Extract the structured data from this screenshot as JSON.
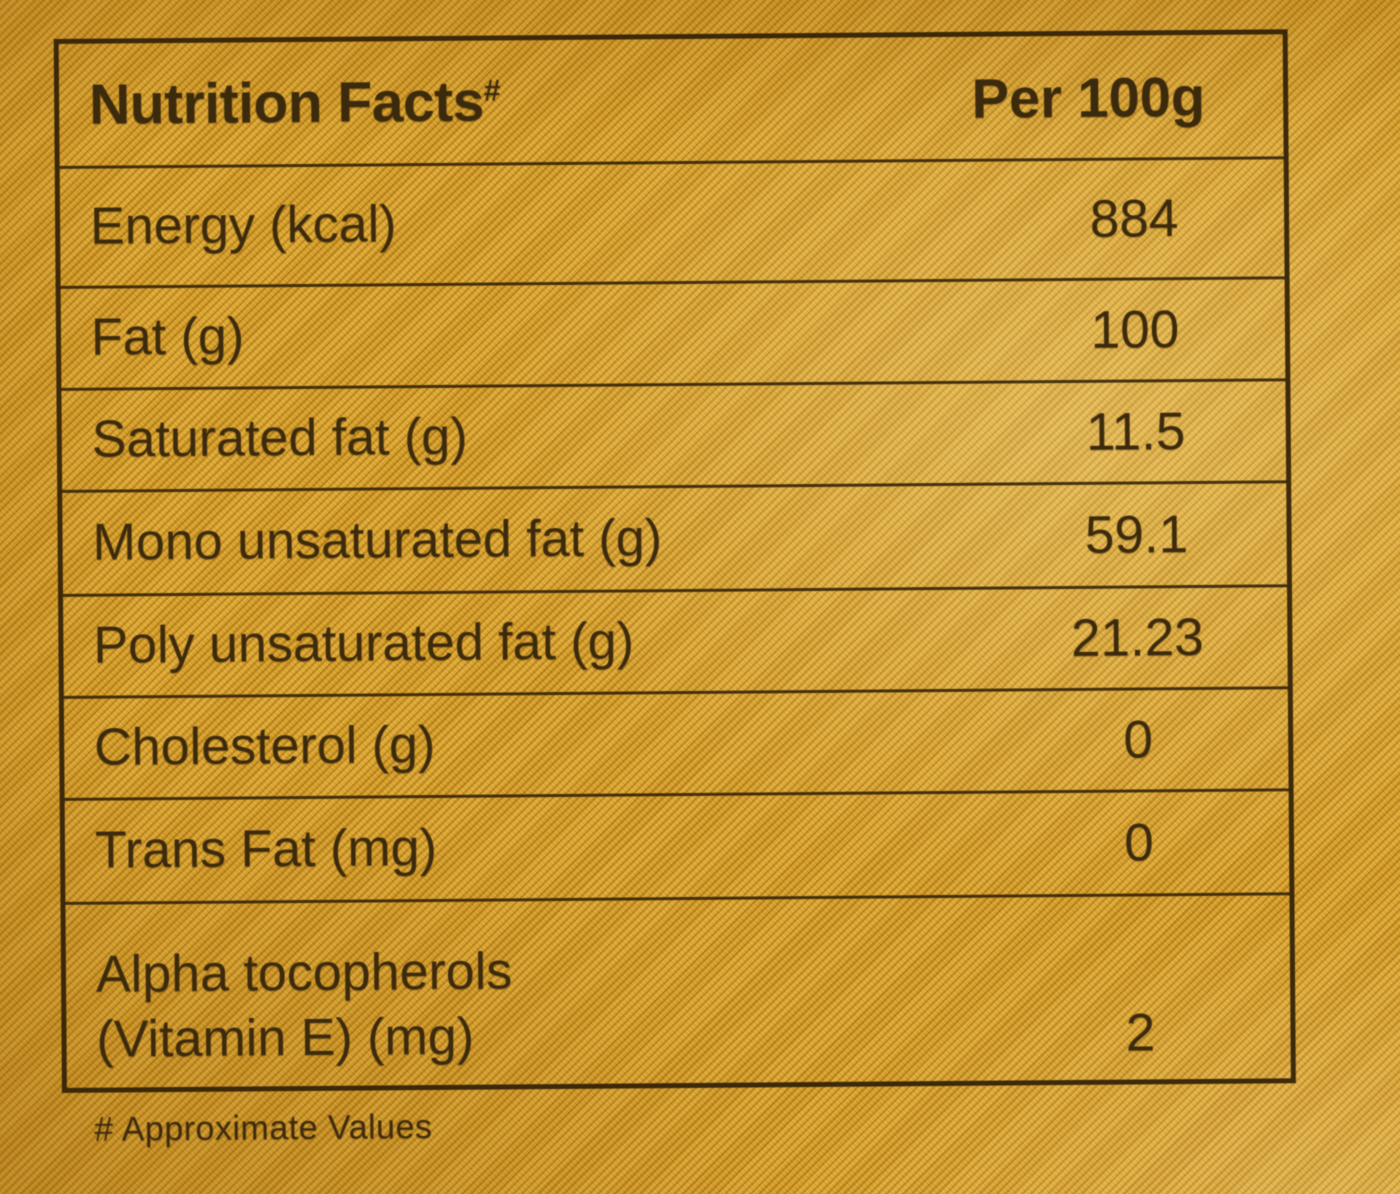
{
  "table": {
    "header": {
      "title": "Nutrition Facts",
      "title_superscript": "#",
      "column": "Per 100g"
    },
    "rows": [
      {
        "label": "Energy (kcal)",
        "value": "884"
      },
      {
        "label": "Fat (g)",
        "value": "100"
      },
      {
        "label": "Saturated fat (g)",
        "value": "11.5"
      },
      {
        "label": "Mono unsaturated fat (g)",
        "value": "59.1"
      },
      {
        "label": "Poly unsaturated fat (g)",
        "value": "21.23"
      },
      {
        "label": "Cholesterol (g)",
        "value": "0"
      },
      {
        "label": "Trans Fat (mg)",
        "value": "0"
      },
      {
        "label": "Alpha tocopherols",
        "label_line2": "(Vitamin E) (mg)",
        "value": "2"
      }
    ],
    "footnote": "# Approximate Values"
  },
  "colors": {
    "package_background": "#d9a127",
    "ink": "#3c2a0d",
    "table_border": "#301f07"
  }
}
